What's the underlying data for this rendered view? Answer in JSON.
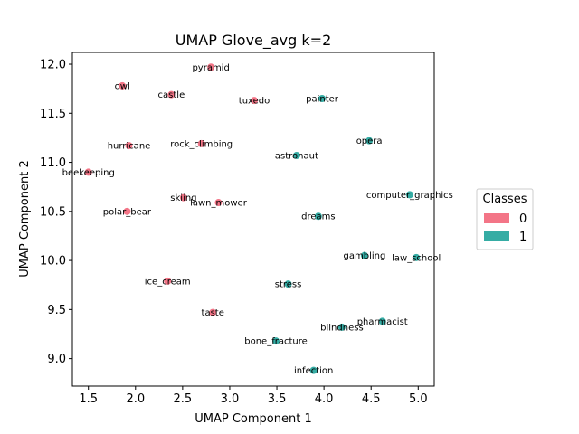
{
  "chart_data": {
    "type": "scatter",
    "title": "UMAP Glove_avg k=2",
    "xlabel": "UMAP Component 1",
    "ylabel": "UMAP Component 2",
    "xlim": [
      1.33,
      5.17
    ],
    "ylim": [
      8.72,
      12.12
    ],
    "xticks": [
      "1.5",
      "2.0",
      "2.5",
      "3.0",
      "3.5",
      "4.0",
      "4.5",
      "5.0"
    ],
    "yticks": [
      "9.0",
      "9.5",
      "10.0",
      "10.5",
      "11.0",
      "11.5",
      "12.0"
    ],
    "grid": false,
    "legend": {
      "title": "Classes",
      "placement": "right",
      "entries": [
        {
          "label": "0",
          "color": "#f37587"
        },
        {
          "label": "1",
          "color": "#35aca4"
        }
      ]
    },
    "points": [
      {
        "label": "pyramid",
        "x": 2.8,
        "y": 11.97,
        "class": 0
      },
      {
        "label": "owl",
        "x": 1.86,
        "y": 11.78,
        "class": 0
      },
      {
        "label": "castle",
        "x": 2.38,
        "y": 11.69,
        "class": 0
      },
      {
        "label": "tuxedo",
        "x": 3.26,
        "y": 11.63,
        "class": 0
      },
      {
        "label": "painter",
        "x": 3.98,
        "y": 11.65,
        "class": 1
      },
      {
        "label": "hurricane",
        "x": 1.93,
        "y": 11.17,
        "class": 0
      },
      {
        "label": "rock_climbing",
        "x": 2.7,
        "y": 11.19,
        "class": 0
      },
      {
        "label": "opera",
        "x": 4.48,
        "y": 11.22,
        "class": 1
      },
      {
        "label": "astronaut",
        "x": 3.71,
        "y": 11.07,
        "class": 1
      },
      {
        "label": "beekeeping",
        "x": 1.5,
        "y": 10.9,
        "class": 0
      },
      {
        "label": "skiing",
        "x": 2.51,
        "y": 10.64,
        "class": 0
      },
      {
        "label": "lawn_mower",
        "x": 2.88,
        "y": 10.59,
        "class": 0
      },
      {
        "label": "computer_graphics",
        "x": 4.91,
        "y": 10.67,
        "class": 1
      },
      {
        "label": "polar_bear",
        "x": 1.91,
        "y": 10.5,
        "class": 0
      },
      {
        "label": "dreams",
        "x": 3.94,
        "y": 10.45,
        "class": 1
      },
      {
        "label": "gambling",
        "x": 4.43,
        "y": 10.05,
        "class": 1
      },
      {
        "label": "law_school",
        "x": 4.98,
        "y": 10.03,
        "class": 1
      },
      {
        "label": "ice_cream",
        "x": 2.34,
        "y": 9.79,
        "class": 0
      },
      {
        "label": "stress",
        "x": 3.62,
        "y": 9.76,
        "class": 1
      },
      {
        "label": "taste",
        "x": 2.82,
        "y": 9.47,
        "class": 0
      },
      {
        "label": "pharmacist",
        "x": 4.62,
        "y": 9.38,
        "class": 1
      },
      {
        "label": "blindness",
        "x": 4.19,
        "y": 9.32,
        "class": 1
      },
      {
        "label": "bone_fracture",
        "x": 3.49,
        "y": 9.18,
        "class": 1
      },
      {
        "label": "infection",
        "x": 3.89,
        "y": 8.88,
        "class": 1
      }
    ]
  }
}
